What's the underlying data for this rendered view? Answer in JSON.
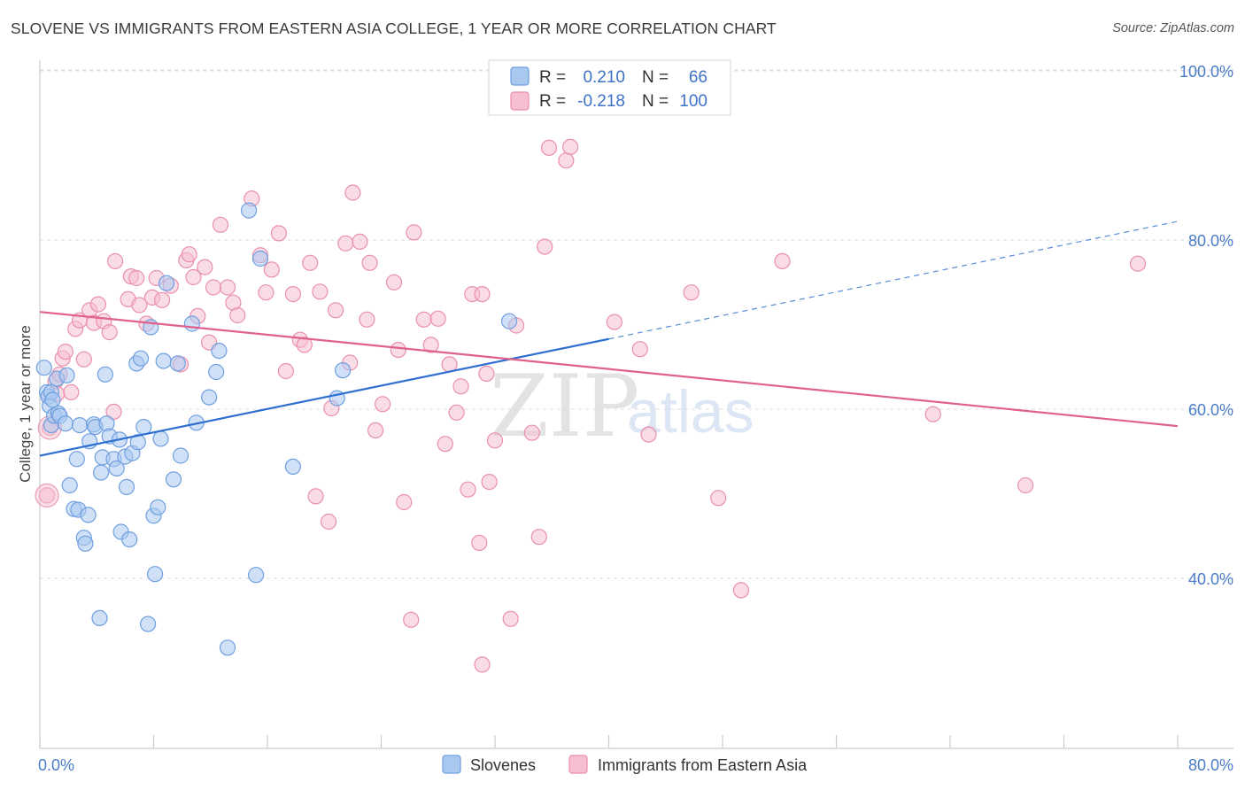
{
  "title": "SLOVENE VS IMMIGRANTS FROM EASTERN ASIA COLLEGE, 1 YEAR OR MORE CORRELATION CHART",
  "source": "Source: ZipAtlas.com",
  "watermark": {
    "zip": "ZIP",
    "atlas": "atlas"
  },
  "colors": {
    "blue_fill": "#a9c8f0",
    "blue_stroke": "#6f9fe0",
    "blue_line": "#2f6fd0",
    "pink_fill": "#f6bfd0",
    "pink_stroke": "#ea8fae",
    "pink_line": "#e0608e",
    "axis_label": "#4a7cc9",
    "grid": "#dcdcdc"
  },
  "legend": {
    "rows": [
      {
        "r_label": "R =",
        "r_value": "0.210",
        "n_label": "N =",
        "n_value": "66"
      },
      {
        "r_label": "R =",
        "r_value": "-0.218",
        "n_label": "N =",
        "n_value": "100"
      }
    ]
  },
  "bottom_legend": [
    "Slovenes",
    "Immigrants from Eastern Asia"
  ],
  "chart_data": {
    "type": "scatter",
    "title": "SLOVENE VS IMMIGRANTS FROM EASTERN ASIA COLLEGE, 1 YEAR OR MORE CORRELATION CHART",
    "xlabel": "",
    "ylabel": "College, 1 year or more",
    "xlim": [
      0,
      80
    ],
    "ylim": [
      20,
      104
    ],
    "x_tick_labels": [
      "0.0%",
      "80.0%"
    ],
    "y_ticks": [
      40,
      60,
      80,
      100
    ],
    "y_tick_labels": [
      "40.0%",
      "60.0%",
      "80.0%",
      "100.0%"
    ],
    "grid": true,
    "legend_position": "top-center",
    "series": [
      {
        "name": "Slovenes",
        "r": 0.21,
        "n": 66,
        "trend": {
          "x": [
            0,
            40
          ],
          "y": [
            54.5,
            68.3
          ],
          "extended_to": [
            80,
            82.2
          ]
        },
        "points": [
          [
            0.3,
            64.9
          ],
          [
            0.5,
            62.0
          ],
          [
            0.6,
            61.5
          ],
          [
            0.7,
            60.4
          ],
          [
            0.8,
            58.1
          ],
          [
            0.8,
            62.0
          ],
          [
            0.9,
            61.1
          ],
          [
            1.0,
            59.2
          ],
          [
            1.2,
            63.6
          ],
          [
            1.3,
            59.5
          ],
          [
            1.4,
            59.2
          ],
          [
            1.8,
            58.3
          ],
          [
            1.9,
            64.0
          ],
          [
            2.1,
            51.0
          ],
          [
            2.4,
            48.2
          ],
          [
            2.6,
            54.1
          ],
          [
            2.7,
            48.1
          ],
          [
            2.8,
            58.1
          ],
          [
            3.1,
            44.8
          ],
          [
            3.2,
            44.1
          ],
          [
            3.4,
            47.5
          ],
          [
            3.5,
            56.2
          ],
          [
            3.8,
            58.2
          ],
          [
            3.9,
            57.9
          ],
          [
            4.2,
            35.3
          ],
          [
            4.3,
            52.5
          ],
          [
            4.4,
            54.3
          ],
          [
            4.6,
            64.1
          ],
          [
            4.7,
            58.3
          ],
          [
            4.9,
            56.8
          ],
          [
            5.2,
            54.1
          ],
          [
            5.4,
            53.0
          ],
          [
            5.6,
            56.4
          ],
          [
            5.7,
            45.5
          ],
          [
            6.0,
            54.4
          ],
          [
            6.1,
            50.8
          ],
          [
            6.3,
            44.6
          ],
          [
            6.5,
            54.8
          ],
          [
            6.8,
            65.4
          ],
          [
            6.9,
            56.1
          ],
          [
            7.1,
            66.0
          ],
          [
            7.3,
            57.9
          ],
          [
            7.6,
            34.6
          ],
          [
            7.8,
            69.7
          ],
          [
            8.0,
            47.4
          ],
          [
            8.1,
            40.5
          ],
          [
            8.3,
            48.4
          ],
          [
            8.5,
            56.5
          ],
          [
            8.7,
            65.7
          ],
          [
            8.9,
            74.9
          ],
          [
            9.4,
            51.7
          ],
          [
            9.7,
            65.4
          ],
          [
            9.9,
            54.5
          ],
          [
            10.7,
            70.1
          ],
          [
            11.0,
            58.4
          ],
          [
            11.9,
            61.4
          ],
          [
            12.4,
            64.4
          ],
          [
            12.6,
            66.9
          ],
          [
            13.2,
            31.8
          ],
          [
            14.7,
            83.5
          ],
          [
            15.2,
            40.4
          ],
          [
            15.5,
            77.8
          ],
          [
            17.8,
            53.2
          ],
          [
            20.9,
            61.3
          ],
          [
            21.3,
            64.6
          ],
          [
            33.0,
            70.4
          ]
        ]
      },
      {
        "name": "Immigrants from Eastern Asia",
        "r": -0.218,
        "n": 100,
        "trend": {
          "x": [
            0,
            80
          ],
          "y": [
            71.5,
            58.0
          ]
        },
        "points": [
          [
            0.5,
            49.8
          ],
          [
            0.7,
            57.8
          ],
          [
            1.1,
            63.3
          ],
          [
            1.2,
            61.8
          ],
          [
            1.4,
            64.1
          ],
          [
            1.6,
            66.0
          ],
          [
            1.8,
            66.8
          ],
          [
            2.2,
            62.0
          ],
          [
            2.5,
            69.5
          ],
          [
            2.8,
            70.5
          ],
          [
            3.1,
            65.9
          ],
          [
            3.5,
            71.7
          ],
          [
            3.8,
            70.2
          ],
          [
            4.1,
            72.4
          ],
          [
            4.5,
            70.4
          ],
          [
            4.9,
            69.1
          ],
          [
            5.2,
            59.7
          ],
          [
            5.3,
            77.5
          ],
          [
            6.2,
            73.0
          ],
          [
            6.4,
            75.7
          ],
          [
            6.8,
            75.5
          ],
          [
            7.0,
            72.3
          ],
          [
            7.5,
            70.1
          ],
          [
            7.9,
            73.2
          ],
          [
            8.2,
            75.5
          ],
          [
            8.6,
            72.9
          ],
          [
            9.2,
            74.6
          ],
          [
            9.9,
            65.3
          ],
          [
            10.3,
            77.6
          ],
          [
            10.5,
            78.3
          ],
          [
            10.8,
            75.6
          ],
          [
            11.1,
            71.0
          ],
          [
            11.6,
            76.8
          ],
          [
            11.9,
            67.9
          ],
          [
            12.2,
            74.4
          ],
          [
            12.7,
            81.8
          ],
          [
            13.2,
            74.4
          ],
          [
            13.6,
            72.6
          ],
          [
            13.9,
            71.1
          ],
          [
            14.9,
            84.9
          ],
          [
            15.5,
            78.2
          ],
          [
            15.9,
            73.8
          ],
          [
            16.3,
            76.5
          ],
          [
            16.8,
            80.8
          ],
          [
            17.3,
            64.5
          ],
          [
            17.8,
            73.6
          ],
          [
            18.3,
            68.2
          ],
          [
            18.6,
            67.6
          ],
          [
            19.0,
            77.3
          ],
          [
            19.4,
            49.7
          ],
          [
            19.7,
            73.9
          ],
          [
            20.3,
            46.7
          ],
          [
            20.5,
            60.1
          ],
          [
            20.8,
            71.7
          ],
          [
            21.5,
            79.6
          ],
          [
            21.8,
            65.5
          ],
          [
            22.0,
            85.6
          ],
          [
            22.5,
            79.8
          ],
          [
            23.0,
            70.6
          ],
          [
            23.2,
            77.3
          ],
          [
            23.6,
            57.5
          ],
          [
            24.1,
            60.6
          ],
          [
            24.9,
            75.0
          ],
          [
            25.2,
            67.0
          ],
          [
            25.6,
            49.0
          ],
          [
            26.1,
            35.1
          ],
          [
            26.3,
            80.9
          ],
          [
            27.0,
            70.6
          ],
          [
            27.5,
            67.6
          ],
          [
            28.0,
            70.7
          ],
          [
            28.5,
            55.9
          ],
          [
            28.8,
            65.3
          ],
          [
            29.3,
            59.6
          ],
          [
            29.6,
            62.7
          ],
          [
            30.1,
            50.5
          ],
          [
            30.4,
            73.6
          ],
          [
            30.9,
            44.2
          ],
          [
            31.1,
            73.6
          ],
          [
            31.4,
            64.2
          ],
          [
            31.6,
            51.4
          ],
          [
            32.0,
            56.3
          ],
          [
            33.1,
            35.2
          ],
          [
            33.5,
            69.9
          ],
          [
            34.6,
            57.2
          ],
          [
            35.5,
            79.2
          ],
          [
            35.8,
            90.9
          ],
          [
            37.0,
            89.4
          ],
          [
            37.3,
            91.0
          ],
          [
            31.1,
            29.8
          ],
          [
            35.1,
            44.9
          ],
          [
            40.4,
            70.3
          ],
          [
            42.2,
            67.1
          ],
          [
            42.8,
            57.0
          ],
          [
            45.8,
            73.8
          ],
          [
            47.7,
            49.5
          ],
          [
            49.3,
            38.6
          ],
          [
            52.2,
            77.5
          ],
          [
            62.8,
            59.4
          ],
          [
            69.3,
            51.0
          ],
          [
            77.2,
            77.2
          ]
        ]
      }
    ]
  }
}
